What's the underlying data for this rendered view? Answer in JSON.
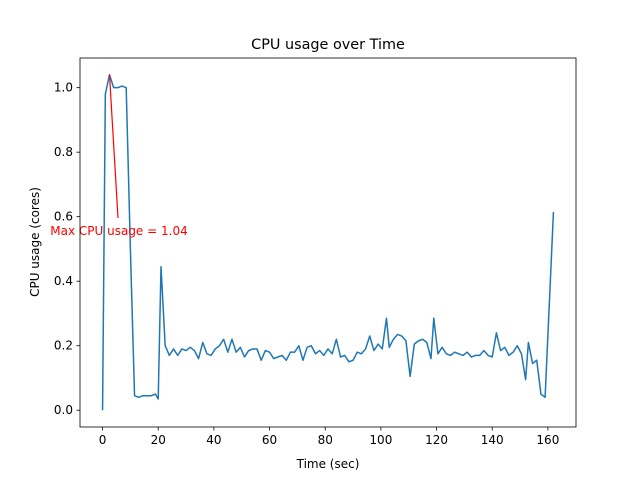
{
  "chart_data": {
    "type": "line",
    "title": "CPU usage over Time",
    "x_label": "Time (sec)",
    "y_label": "CPU usage (cores)",
    "annotation": {
      "text": "Max CPU usage = 1.04",
      "color": "#ff0000"
    },
    "xlim": [
      -8.1,
      170.1
    ],
    "xticks": [
      0,
      20,
      40,
      60,
      80,
      100,
      120,
      140,
      160
    ],
    "ylim": [
      -0.052,
      1.092
    ],
    "yticks": [
      {
        "value": 0,
        "label": "0.0"
      },
      0.2,
      0.4,
      0.6,
      0.8,
      {
        "value": 1,
        "label": "1.0"
      }
    ],
    "grid": false,
    "x": [
      0,
      1,
      2.5,
      4,
      5.5,
      7,
      8.5,
      10,
      11.5,
      13,
      14.5,
      16,
      17.5,
      19,
      20,
      21,
      22.5,
      24,
      25.5,
      27,
      28.5,
      30,
      31.5,
      33,
      34.5,
      36,
      37.5,
      39,
      40.5,
      42,
      43.5,
      45,
      46.5,
      48,
      49.5,
      51,
      52.5,
      54,
      55.5,
      57,
      58.5,
      60,
      61.5,
      63,
      64.5,
      66,
      67.5,
      69,
      70.5,
      72,
      73.5,
      75,
      76.5,
      78,
      79.5,
      81,
      82.5,
      84,
      85.5,
      87,
      88.5,
      90,
      91.5,
      93,
      94.5,
      96,
      97.5,
      99,
      100.5,
      102,
      103,
      104.5,
      106,
      107.5,
      109,
      110.5,
      112,
      113.5,
      115,
      116.5,
      118,
      119,
      120.5,
      122,
      123.5,
      125,
      126.5,
      128,
      129.5,
      131,
      132.5,
      134,
      135.5,
      137,
      138.5,
      140,
      141.5,
      143,
      144.5,
      146,
      147.5,
      149,
      150.5,
      152,
      153,
      154.5,
      156,
      157.5,
      159,
      162
    ],
    "series": [
      {
        "name": "CPU usage",
        "color": "#1f77b4",
        "values": [
          0,
          0.98,
          1.04,
          1.0,
          1.0,
          1.005,
          1.0,
          0.5,
          0.045,
          0.04,
          0.045,
          0.045,
          0.045,
          0.05,
          0.035,
          0.445,
          0.2,
          0.17,
          0.19,
          0.17,
          0.19,
          0.185,
          0.195,
          0.185,
          0.16,
          0.21,
          0.175,
          0.17,
          0.19,
          0.2,
          0.22,
          0.18,
          0.22,
          0.18,
          0.195,
          0.165,
          0.185,
          0.19,
          0.19,
          0.155,
          0.185,
          0.18,
          0.16,
          0.165,
          0.17,
          0.155,
          0.18,
          0.18,
          0.2,
          0.155,
          0.195,
          0.2,
          0.175,
          0.185,
          0.17,
          0.19,
          0.175,
          0.22,
          0.165,
          0.17,
          0.15,
          0.155,
          0.18,
          0.175,
          0.19,
          0.23,
          0.185,
          0.205,
          0.19,
          0.285,
          0.195,
          0.22,
          0.235,
          0.23,
          0.215,
          0.105,
          0.205,
          0.215,
          0.22,
          0.21,
          0.16,
          0.285,
          0.175,
          0.195,
          0.175,
          0.17,
          0.18,
          0.175,
          0.17,
          0.18,
          0.165,
          0.17,
          0.17,
          0.185,
          0.17,
          0.165,
          0.24,
          0.185,
          0.195,
          0.17,
          0.18,
          0.2,
          0.175,
          0.095,
          0.21,
          0.145,
          0.155,
          0.05,
          0.04,
          0.615
        ]
      }
    ]
  }
}
